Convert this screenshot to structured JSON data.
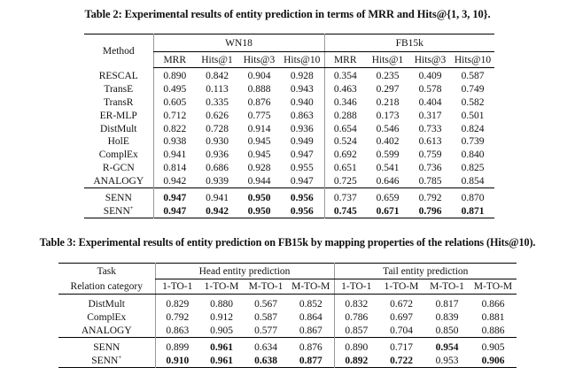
{
  "table2": {
    "caption": "Table 2: Experimental results of entity prediction in terms of MRR and Hits@{1, 3, 10}.",
    "method_header": "Method",
    "datasets": [
      "WN18",
      "FB15k"
    ],
    "metrics": [
      "MRR",
      "Hits@1",
      "Hits@3",
      "Hits@10"
    ],
    "rows": [
      {
        "method": "RESCAL",
        "values": [
          "0.890",
          "0.842",
          "0.904",
          "0.928",
          "0.354",
          "0.235",
          "0.409",
          "0.587"
        ]
      },
      {
        "method": "TransE",
        "values": [
          "0.495",
          "0.113",
          "0.888",
          "0.943",
          "0.463",
          "0.297",
          "0.578",
          "0.749"
        ]
      },
      {
        "method": "TransR",
        "values": [
          "0.605",
          "0.335",
          "0.876",
          "0.940",
          "0.346",
          "0.218",
          "0.404",
          "0.582"
        ]
      },
      {
        "method": "ER-MLP",
        "values": [
          "0.712",
          "0.626",
          "0.775",
          "0.863",
          "0.288",
          "0.173",
          "0.317",
          "0.501"
        ]
      },
      {
        "method": "DistMult",
        "values": [
          "0.822",
          "0.728",
          "0.914",
          "0.936",
          "0.654",
          "0.546",
          "0.733",
          "0.824"
        ]
      },
      {
        "method": "HolE",
        "values": [
          "0.938",
          "0.930",
          "0.945",
          "0.949",
          "0.524",
          "0.402",
          "0.613",
          "0.739"
        ]
      },
      {
        "method": "ComplEx",
        "values": [
          "0.941",
          "0.936",
          "0.945",
          "0.947",
          "0.692",
          "0.599",
          "0.759",
          "0.840"
        ]
      },
      {
        "method": "R-GCN",
        "values": [
          "0.814",
          "0.686",
          "0.928",
          "0.955",
          "0.651",
          "0.541",
          "0.736",
          "0.825"
        ]
      },
      {
        "method": "ANALOGY",
        "values": [
          "0.942",
          "0.939",
          "0.944",
          "0.947",
          "0.725",
          "0.646",
          "0.785",
          "0.854"
        ]
      }
    ],
    "senn_rows": [
      {
        "method": "SENN",
        "sup": "",
        "values": [
          "0.947",
          "0.941",
          "0.950",
          "0.956",
          "0.737",
          "0.659",
          "0.792",
          "0.870"
        ],
        "bold": [
          true,
          false,
          true,
          true,
          false,
          false,
          false,
          false
        ]
      },
      {
        "method": "SENN",
        "sup": "+",
        "values": [
          "0.947",
          "0.942",
          "0.950",
          "0.956",
          "0.745",
          "0.671",
          "0.796",
          "0.871"
        ],
        "bold": [
          true,
          true,
          true,
          true,
          true,
          true,
          true,
          true
        ]
      }
    ]
  },
  "table3": {
    "caption": "Table 3: Experimental results of entity prediction on FB15k by mapping properties of the relations (Hits@10).",
    "task_header": "Task",
    "relation_header": "Relation category",
    "groups": [
      "Head entity prediction",
      "Tail entity prediction"
    ],
    "categories": [
      "1-TO-1",
      "1-TO-M",
      "M-TO-1",
      "M-TO-M"
    ],
    "rows": [
      {
        "method": "DistMult",
        "values": [
          "0.829",
          "0.880",
          "0.567",
          "0.852",
          "0.832",
          "0.672",
          "0.817",
          "0.866"
        ]
      },
      {
        "method": "ComplEx",
        "values": [
          "0.792",
          "0.912",
          "0.587",
          "0.864",
          "0.786",
          "0.697",
          "0.839",
          "0.881"
        ]
      },
      {
        "method": "ANALOGY",
        "values": [
          "0.863",
          "0.905",
          "0.577",
          "0.867",
          "0.857",
          "0.704",
          "0.850",
          "0.886"
        ]
      }
    ],
    "senn_rows": [
      {
        "method": "SENN",
        "sup": "",
        "values": [
          "0.899",
          "0.961",
          "0.634",
          "0.876",
          "0.890",
          "0.717",
          "0.954",
          "0.905"
        ],
        "bold": [
          false,
          true,
          false,
          false,
          false,
          false,
          true,
          false
        ]
      },
      {
        "method": "SENN",
        "sup": "+",
        "values": [
          "0.910",
          "0.961",
          "0.638",
          "0.877",
          "0.892",
          "0.722",
          "0.953",
          "0.906"
        ],
        "bold": [
          true,
          true,
          true,
          true,
          true,
          true,
          false,
          true
        ]
      }
    ]
  }
}
